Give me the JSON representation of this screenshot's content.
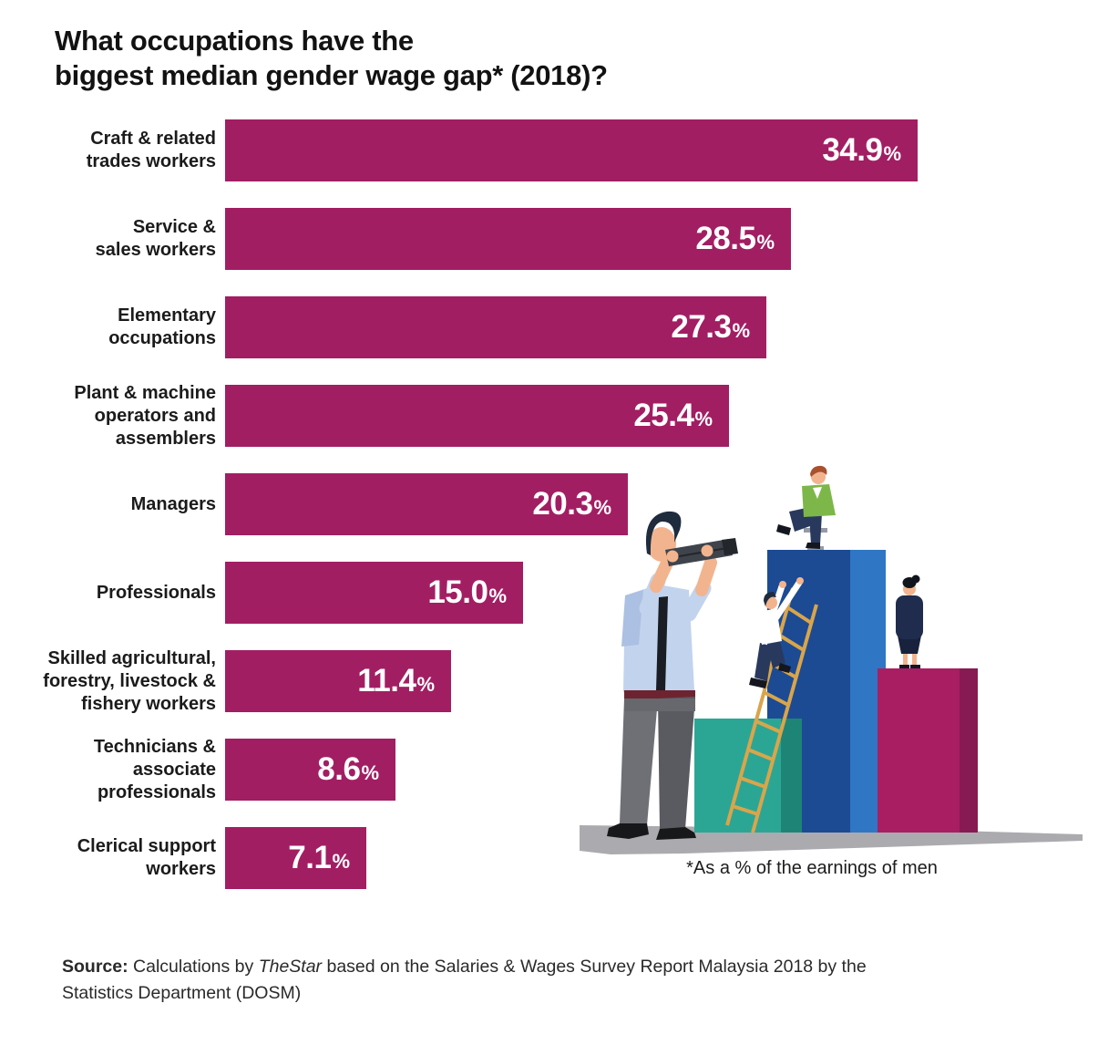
{
  "title": {
    "lines": [
      "What occupations have the",
      "biggest median gender wage gap* (2018)?"
    ]
  },
  "chart_data": {
    "type": "bar",
    "orientation": "horizontal",
    "title": "What occupations have the biggest median gender wage gap* (2018)?",
    "unit": "%",
    "xlim": [
      0,
      34.9
    ],
    "grid": false,
    "bar_color": "#A21E63",
    "value_label_color": "#FFFFFF",
    "categories": [
      "Craft & related trades workers",
      "Service & sales workers",
      "Elementary occupations",
      "Plant & machine operators and assemblers",
      "Managers",
      "Professionals",
      "Skilled agricultural, forestry, livestock & fishery workers",
      "Technicians & associate professionals",
      "Clerical support workers"
    ],
    "values": [
      34.9,
      28.5,
      27.3,
      25.4,
      20.3,
      15.0,
      11.4,
      8.6,
      7.1
    ],
    "rows": [
      {
        "label_lines": [
          "Craft & related",
          "trades workers"
        ],
        "value": 34.9,
        "display": "34.9"
      },
      {
        "label_lines": [
          "Service &",
          "sales workers"
        ],
        "value": 28.5,
        "display": "28.5"
      },
      {
        "label_lines": [
          "Elementary",
          "occupations"
        ],
        "value": 27.3,
        "display": "27.3"
      },
      {
        "label_lines": [
          "Plant & machine",
          "operators and",
          "assemblers"
        ],
        "value": 25.4,
        "display": "25.4"
      },
      {
        "label_lines": [
          "Managers"
        ],
        "value": 20.3,
        "display": "20.3"
      },
      {
        "label_lines": [
          "Professionals"
        ],
        "value": 15.0,
        "display": "15.0"
      },
      {
        "label_lines": [
          "Skilled agricultural,",
          "forestry, livestock &",
          "fishery workers"
        ],
        "value": 11.4,
        "display": "11.4"
      },
      {
        "label_lines": [
          "Technicians &",
          "associate",
          "professionals"
        ],
        "value": 8.6,
        "display": "8.6"
      },
      {
        "label_lines": [
          "Clerical support",
          "workers"
        ],
        "value": 7.1,
        "display": "7.1"
      }
    ]
  },
  "footnote": "*As a % of the earnings of men",
  "source": {
    "label": "Source:",
    "pre": " Calculations by ",
    "publication": "TheStar",
    "post": " based on the Salaries & Wages Survey Report Malaysia 2018 by the Statistics Department (DOSM)"
  },
  "illustration": {
    "description": "Man with binoculars looking at three podium bars; a man climbs a ladder up the tallest blue bar, a man in a green jacket sits on top of it, a woman stands on the shorter magenta bar",
    "figures": [
      "man-with-binoculars",
      "man-climbing-ladder",
      "man-sitting-on-top",
      "woman-on-magenta-podium"
    ],
    "colors": {
      "podium_teal_front": "#2BA695",
      "podium_teal_side": "#1E8476",
      "podium_blue_front": "#1C4B94",
      "podium_blue_side": "#2F76C4",
      "podium_magenta_front": "#A91E63",
      "podium_magenta_side": "#871A52",
      "ladder": "#D9A54B",
      "ground_shadow": "#ABABAF",
      "skin": "#F2B48E",
      "shirt_light_blue": "#C2D3EE",
      "shirt_light_blue_shade": "#ABC0E2",
      "pants_gray": "#66686D",
      "pants_gray_dark": "#595B60",
      "jacket_green": "#7DB74A",
      "outfit_navy": "#202C4E",
      "navy_pants": "#29395E",
      "hair_dark": "#1F2C3E",
      "hair_auburn": "#A8512E",
      "white_shirt": "#FFFFFF",
      "binoculars": "#3F444C",
      "shoes_black": "#17181A",
      "belt_maroon": "#6E2430",
      "stool_gray": "#949AA6"
    }
  }
}
